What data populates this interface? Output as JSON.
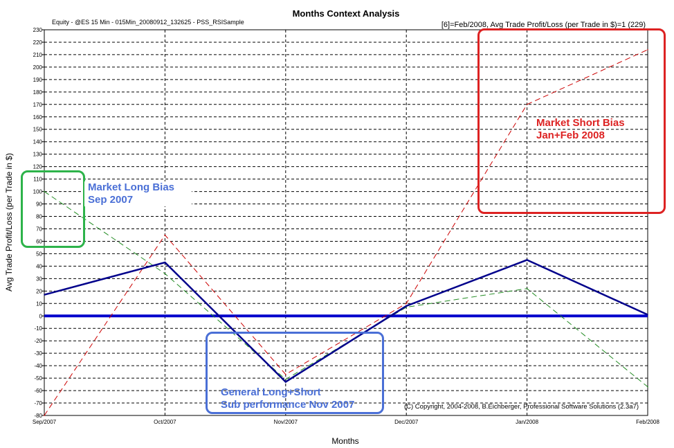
{
  "chart_data": {
    "type": "line",
    "title": "Months Context Analysis",
    "subtitle": "Equity - @ES 15 Min - 015Min_20080912_132625 - PSS_RSISample",
    "header_info": "[6]=Feb/2008,  Avg Trade Profit/Loss   (per Trade in $)=1 (229)",
    "xlabel": "Months",
    "ylabel": "Avg Trade Profit/Loss   (per Trade in $)",
    "copyright": "(C) Copyright, 2004-2008, B.Eichberger, Professional Software Solutions (2.3a7)",
    "categories": [
      "Sep/2007",
      "Oct/2007",
      "Nov/2007",
      "Dec/2007",
      "Jan/2008",
      "Feb/2008"
    ],
    "ylim": [
      -80,
      230
    ],
    "ytick_step": 10,
    "grid": true,
    "series": [
      {
        "color": "#00008b",
        "style": "solid",
        "values": [
          17,
          43,
          -53,
          8,
          45,
          1
        ]
      },
      {
        "color": "#cc0000",
        "style": "dashed",
        "values": [
          -80,
          65,
          -47,
          10,
          170,
          214
        ]
      },
      {
        "color": "#228b22",
        "style": "dashed",
        "values": [
          100,
          34,
          -51,
          7,
          22,
          -57
        ]
      }
    ],
    "zero_line_color": "#0000cc"
  },
  "annotations": [
    {
      "text": "Market Long Bias\nSep 2007",
      "color": "#4a6fd6",
      "box_color": "#2db34a"
    },
    {
      "text": "Market Short Bias\nJan+Feb 2008",
      "color": "#dd2222",
      "box_color": "#dd2222"
    },
    {
      "text": "General Long+Short\nSub  performance Nov 2007",
      "color": "#4a6fd6",
      "box_color": "#4a6fd6"
    }
  ]
}
